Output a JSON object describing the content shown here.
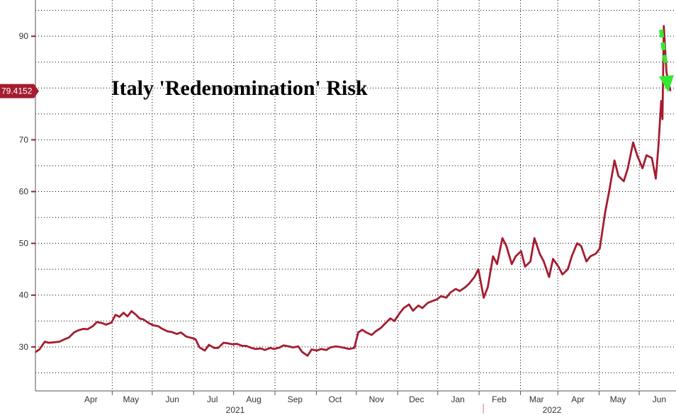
{
  "chart_data": {
    "type": "line",
    "title": "Italy 'Redenomination' Risk",
    "xlabel": "",
    "ylabel": "",
    "ylim": [
      21.5,
      97
    ],
    "y_ticks": [
      30,
      40,
      50,
      60,
      70,
      80,
      90
    ],
    "grid": true,
    "last_value_label": "79.4152",
    "month_ticks": [
      "Apr",
      "May",
      "Jun",
      "Jul",
      "Aug",
      "Sep",
      "Oct",
      "Nov",
      "Dec",
      "Jan",
      "Feb",
      "Mar",
      "Apr",
      "May",
      "Jun"
    ],
    "year_labels": [
      "2021",
      "2022"
    ],
    "x_range": [
      "2021-03-01",
      "2022-06-22"
    ],
    "series": [
      {
        "color": "#a51c30",
        "points": [
          [
            "2021-03-01",
            29.0
          ],
          [
            "2021-03-04",
            29.5
          ],
          [
            "2021-03-08",
            31.0
          ],
          [
            "2021-03-11",
            30.8
          ],
          [
            "2021-03-15",
            30.9
          ],
          [
            "2021-03-19",
            31.0
          ],
          [
            "2021-03-23",
            31.5
          ],
          [
            "2021-03-26",
            31.8
          ],
          [
            "2021-03-30",
            32.8
          ],
          [
            "2021-04-02",
            33.2
          ],
          [
            "2021-04-06",
            33.5
          ],
          [
            "2021-04-09",
            33.4
          ],
          [
            "2021-04-13",
            34.0
          ],
          [
            "2021-04-16",
            34.8
          ],
          [
            "2021-04-20",
            34.6
          ],
          [
            "2021-04-23",
            34.3
          ],
          [
            "2021-04-27",
            34.7
          ],
          [
            "2021-04-30",
            36.2
          ],
          [
            "2021-05-03",
            35.8
          ],
          [
            "2021-05-06",
            36.6
          ],
          [
            "2021-05-09",
            35.9
          ],
          [
            "2021-05-12",
            36.9
          ],
          [
            "2021-05-15",
            36.3
          ],
          [
            "2021-05-18",
            35.5
          ],
          [
            "2021-05-21",
            35.3
          ],
          [
            "2021-05-25",
            34.6
          ],
          [
            "2021-05-28",
            34.2
          ],
          [
            "2021-06-01",
            34.0
          ],
          [
            "2021-06-04",
            33.5
          ],
          [
            "2021-06-08",
            33.0
          ],
          [
            "2021-06-11",
            32.9
          ],
          [
            "2021-06-15",
            32.5
          ],
          [
            "2021-06-18",
            32.8
          ],
          [
            "2021-06-22",
            32.0
          ],
          [
            "2021-06-25",
            31.8
          ],
          [
            "2021-06-29",
            31.5
          ],
          [
            "2021-07-02",
            29.9
          ],
          [
            "2021-07-06",
            29.3
          ],
          [
            "2021-07-09",
            30.4
          ],
          [
            "2021-07-13",
            29.8
          ],
          [
            "2021-07-16",
            29.8
          ],
          [
            "2021-07-20",
            30.8
          ],
          [
            "2021-07-23",
            30.7
          ],
          [
            "2021-07-27",
            30.5
          ],
          [
            "2021-07-30",
            30.6
          ],
          [
            "2021-08-03",
            30.2
          ],
          [
            "2021-08-06",
            30.2
          ],
          [
            "2021-08-10",
            29.8
          ],
          [
            "2021-08-13",
            29.6
          ],
          [
            "2021-08-17",
            29.7
          ],
          [
            "2021-08-20",
            29.4
          ],
          [
            "2021-08-24",
            29.8
          ],
          [
            "2021-08-27",
            29.6
          ],
          [
            "2021-08-31",
            29.9
          ],
          [
            "2021-09-03",
            30.3
          ],
          [
            "2021-09-07",
            30.1
          ],
          [
            "2021-09-10",
            29.9
          ],
          [
            "2021-09-14",
            30.1
          ],
          [
            "2021-09-17",
            29.0
          ],
          [
            "2021-09-21",
            28.3
          ],
          [
            "2021-09-24",
            29.5
          ],
          [
            "2021-09-28",
            29.3
          ],
          [
            "2021-10-01",
            29.6
          ],
          [
            "2021-10-05",
            29.4
          ],
          [
            "2021-10-08",
            29.9
          ],
          [
            "2021-10-12",
            30.1
          ],
          [
            "2021-10-15",
            30.0
          ],
          [
            "2021-10-19",
            29.8
          ],
          [
            "2021-10-22",
            29.6
          ],
          [
            "2021-10-26",
            29.8
          ],
          [
            "2021-10-29",
            32.8
          ],
          [
            "2021-11-01",
            33.3
          ],
          [
            "2021-11-04",
            32.8
          ],
          [
            "2021-11-08",
            32.3
          ],
          [
            "2021-11-11",
            33.0
          ],
          [
            "2021-11-15",
            33.7
          ],
          [
            "2021-11-18",
            34.5
          ],
          [
            "2021-11-22",
            35.5
          ],
          [
            "2021-11-25",
            35.0
          ],
          [
            "2021-11-29",
            36.5
          ],
          [
            "2021-12-02",
            37.5
          ],
          [
            "2021-12-06",
            38.2
          ],
          [
            "2021-12-09",
            37.0
          ],
          [
            "2021-12-13",
            38.0
          ],
          [
            "2021-12-16",
            37.5
          ],
          [
            "2021-12-20",
            38.5
          ],
          [
            "2021-12-23",
            38.8
          ],
          [
            "2021-12-27",
            39.2
          ],
          [
            "2021-12-30",
            39.8
          ],
          [
            "2022-01-03",
            39.5
          ],
          [
            "2022-01-06",
            40.5
          ],
          [
            "2022-01-10",
            41.2
          ],
          [
            "2022-01-13",
            40.8
          ],
          [
            "2022-01-17",
            41.5
          ],
          [
            "2022-01-20",
            42.2
          ],
          [
            "2022-01-24",
            43.5
          ],
          [
            "2022-01-27",
            45.0
          ],
          [
            "2022-01-31",
            39.5
          ],
          [
            "2022-02-03",
            41.5
          ],
          [
            "2022-02-07",
            47.5
          ],
          [
            "2022-02-10",
            46.0
          ],
          [
            "2022-02-14",
            51.0
          ],
          [
            "2022-02-17",
            49.5
          ],
          [
            "2022-02-21",
            46.0
          ],
          [
            "2022-02-24",
            47.5
          ],
          [
            "2022-02-28",
            48.5
          ],
          [
            "2022-03-03",
            45.5
          ],
          [
            "2022-03-07",
            46.5
          ],
          [
            "2022-03-10",
            51.0
          ],
          [
            "2022-03-14",
            48.0
          ],
          [
            "2022-03-17",
            46.5
          ],
          [
            "2022-03-21",
            43.5
          ],
          [
            "2022-03-24",
            47.0
          ],
          [
            "2022-03-28",
            45.5
          ],
          [
            "2022-03-31",
            44.0
          ],
          [
            "2022-04-04",
            45.0
          ],
          [
            "2022-04-07",
            47.5
          ],
          [
            "2022-04-11",
            50.0
          ],
          [
            "2022-04-14",
            49.5
          ],
          [
            "2022-04-18",
            46.5
          ],
          [
            "2022-04-21",
            47.5
          ],
          [
            "2022-04-25",
            48.0
          ],
          [
            "2022-04-28",
            49.0
          ],
          [
            "2022-05-02",
            56.0
          ],
          [
            "2022-05-05",
            60.0
          ],
          [
            "2022-05-09",
            66.0
          ],
          [
            "2022-05-12",
            63.0
          ],
          [
            "2022-05-16",
            62.0
          ],
          [
            "2022-05-19",
            64.5
          ],
          [
            "2022-05-23",
            69.5
          ],
          [
            "2022-05-26",
            67.0
          ],
          [
            "2022-05-30",
            64.5
          ],
          [
            "2022-06-02",
            67.0
          ],
          [
            "2022-06-06",
            66.5
          ],
          [
            "2022-06-09",
            62.5
          ],
          [
            "2022-06-11",
            69.0
          ],
          [
            "2022-06-13",
            77.5
          ],
          [
            "2022-06-14",
            74.0
          ],
          [
            "2022-06-15",
            92.0
          ],
          [
            "2022-06-17",
            83.0
          ],
          [
            "2022-06-20",
            79.4
          ]
        ]
      }
    ]
  },
  "annotations": {
    "arrow_color": "#33e833"
  }
}
